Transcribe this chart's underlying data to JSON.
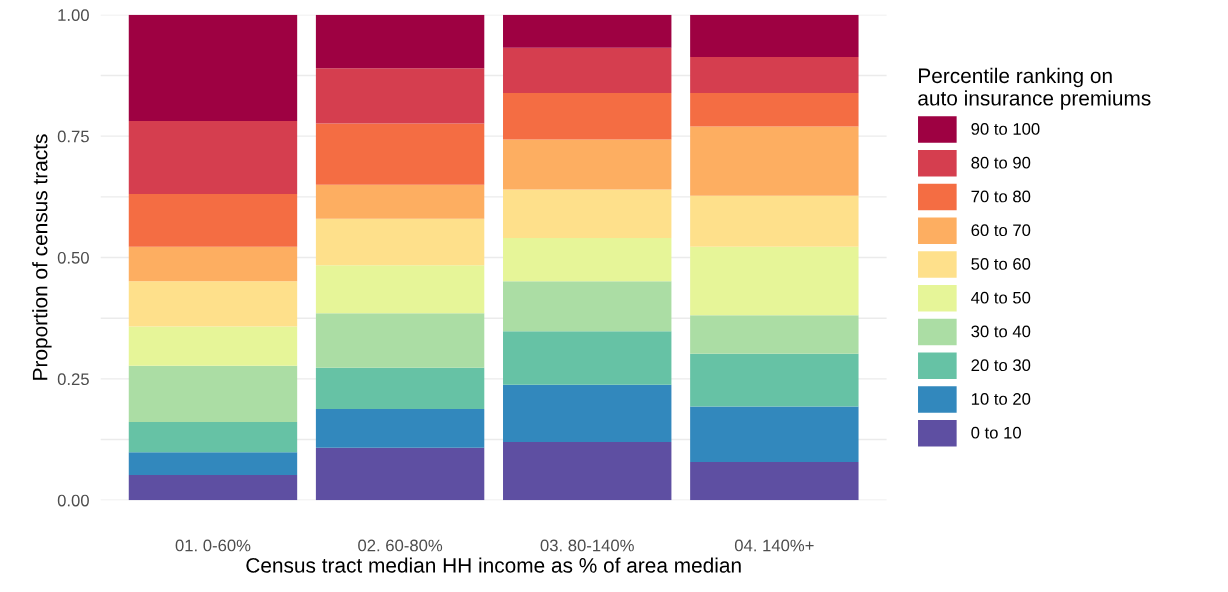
{
  "chart_data": {
    "type": "bar",
    "stacked": true,
    "categories": [
      "01. 0-60%",
      "02. 60-80%",
      "03. 80-140%",
      "04. 140%+"
    ],
    "xlabel": "Census tract median HH income as % of area median",
    "ylabel": "Proportion of census tracts",
    "legend_title": "Percentile ranking on\nauto insurance premiums",
    "legend": "right",
    "grid": "y",
    "ylim": [
      0,
      1
    ],
    "yticks": [
      {
        "value": 0,
        "label": "0.00"
      },
      {
        "value": 0.125,
        "label": null
      },
      {
        "value": 0.25,
        "label": "0.25"
      },
      {
        "value": 0.375,
        "label": null
      },
      {
        "value": 0.5,
        "label": "0.50"
      },
      {
        "value": 0.625,
        "label": null
      },
      {
        "value": 0.75,
        "label": "0.75"
      },
      {
        "value": 0.875,
        "label": null
      },
      {
        "value": 1,
        "label": "1.00"
      }
    ],
    "series": [
      {
        "name": "0 to 10",
        "color": "#5e4fa2",
        "values": [
          0.052,
          0.108,
          0.12,
          0.079
        ]
      },
      {
        "name": "10 to 20",
        "color": "#3288bd",
        "values": [
          0.047,
          0.08,
          0.118,
          0.114
        ]
      },
      {
        "name": "20 to 30",
        "color": "#66c2a5",
        "values": [
          0.062,
          0.085,
          0.11,
          0.109
        ]
      },
      {
        "name": "30 to 40",
        "color": "#abdda4",
        "values": [
          0.116,
          0.112,
          0.103,
          0.079
        ]
      },
      {
        "name": "40 to 50",
        "color": "#e6f598",
        "values": [
          0.081,
          0.099,
          0.089,
          0.141
        ]
      },
      {
        "name": "50 to 60",
        "color": "#fee08b",
        "values": [
          0.093,
          0.096,
          0.1,
          0.105
        ]
      },
      {
        "name": "60 to 70",
        "color": "#fdae61",
        "values": [
          0.071,
          0.07,
          0.103,
          0.143
        ]
      },
      {
        "name": "70 to 80",
        "color": "#f46d43",
        "values": [
          0.109,
          0.126,
          0.096,
          0.069
        ]
      },
      {
        "name": "80 to 90",
        "color": "#d53e4f",
        "values": [
          0.15,
          0.114,
          0.093,
          0.074
        ]
      },
      {
        "name": "90 to 100",
        "color": "#9e0142",
        "values": [
          0.219,
          0.11,
          0.068,
          0.087
        ]
      }
    ]
  }
}
